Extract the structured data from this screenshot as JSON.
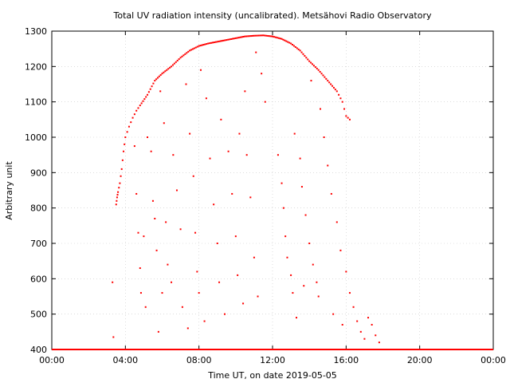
{
  "chart_data": {
    "type": "scatter",
    "title": "Total UV radiation intensity (uncalibrated). Metsähovi Radio Observatory",
    "xlabel": "Time UT, on date 2019-05-05",
    "ylabel": "Arbitrary unit",
    "xlim": [
      "00:00",
      "24:00"
    ],
    "ylim": [
      400,
      1300
    ],
    "x_ticks": [
      "00:00",
      "04:00",
      "08:00",
      "12:00",
      "16:00",
      "20:00",
      "00:00"
    ],
    "y_ticks": [
      400,
      500,
      600,
      700,
      800,
      900,
      1000,
      1100,
      1200,
      1300
    ],
    "grid": true,
    "legend": "none",
    "marker_color": "#ff0000",
    "series": [
      {
        "x_unit": "hours UT",
        "baseline": {
          "x_range": [
            0,
            24
          ],
          "y": 400
        },
        "envelope": [
          [
            3.5,
            810
          ],
          [
            3.55,
            830
          ],
          [
            3.6,
            845
          ],
          [
            3.7,
            870
          ],
          [
            3.8,
            910
          ],
          [
            3.9,
            960
          ],
          [
            4.0,
            1000
          ],
          [
            4.2,
            1030
          ],
          [
            4.4,
            1055
          ],
          [
            4.6,
            1075
          ],
          [
            4.8,
            1090
          ],
          [
            5.2,
            1120
          ],
          [
            5.6,
            1160
          ],
          [
            6.0,
            1180
          ],
          [
            6.5,
            1200
          ],
          [
            7.0,
            1225
          ],
          [
            7.5,
            1245
          ],
          [
            8.0,
            1258
          ],
          [
            8.5,
            1265
          ],
          [
            9.0,
            1270
          ],
          [
            9.5,
            1275
          ],
          [
            10.0,
            1280
          ],
          [
            10.5,
            1285
          ],
          [
            11.0,
            1287
          ],
          [
            11.5,
            1288
          ],
          [
            12.0,
            1285
          ],
          [
            12.5,
            1278
          ],
          [
            13.0,
            1265
          ],
          [
            13.5,
            1245
          ],
          [
            14.0,
            1215
          ],
          [
            14.5,
            1190
          ],
          [
            15.0,
            1160
          ],
          [
            15.5,
            1130
          ],
          [
            15.8,
            1100
          ],
          [
            16.0,
            1060
          ],
          [
            16.2,
            1050
          ]
        ],
        "scatter": [
          [
            3.3,
            590
          ],
          [
            3.35,
            435
          ],
          [
            4.5,
            975
          ],
          [
            4.6,
            840
          ],
          [
            4.7,
            730
          ],
          [
            4.8,
            630
          ],
          [
            4.85,
            560
          ],
          [
            5.0,
            720
          ],
          [
            5.1,
            520
          ],
          [
            5.2,
            1000
          ],
          [
            5.4,
            960
          ],
          [
            5.5,
            820
          ],
          [
            5.6,
            770
          ],
          [
            5.7,
            680
          ],
          [
            5.8,
            450
          ],
          [
            5.9,
            1130
          ],
          [
            6.0,
            560
          ],
          [
            6.1,
            1040
          ],
          [
            6.2,
            760
          ],
          [
            6.3,
            640
          ],
          [
            6.5,
            590
          ],
          [
            6.6,
            950
          ],
          [
            6.8,
            850
          ],
          [
            7.0,
            740
          ],
          [
            7.1,
            520
          ],
          [
            7.3,
            1150
          ],
          [
            7.4,
            460
          ],
          [
            7.5,
            1010
          ],
          [
            7.7,
            890
          ],
          [
            7.8,
            730
          ],
          [
            7.9,
            620
          ],
          [
            8.0,
            560
          ],
          [
            8.1,
            1190
          ],
          [
            8.3,
            480
          ],
          [
            8.4,
            1110
          ],
          [
            8.6,
            940
          ],
          [
            8.8,
            810
          ],
          [
            9.0,
            700
          ],
          [
            9.1,
            590
          ],
          [
            9.2,
            1050
          ],
          [
            9.4,
            500
          ],
          [
            9.6,
            960
          ],
          [
            9.8,
            840
          ],
          [
            10.0,
            720
          ],
          [
            10.1,
            610
          ],
          [
            10.2,
            1010
          ],
          [
            10.4,
            530
          ],
          [
            10.5,
            1130
          ],
          [
            10.6,
            950
          ],
          [
            10.8,
            830
          ],
          [
            11.0,
            660
          ],
          [
            11.1,
            1240
          ],
          [
            11.2,
            550
          ],
          [
            11.4,
            1180
          ],
          [
            11.6,
            1100
          ],
          [
            12.3,
            950
          ],
          [
            12.5,
            870
          ],
          [
            12.6,
            800
          ],
          [
            12.7,
            720
          ],
          [
            12.8,
            660
          ],
          [
            13.0,
            610
          ],
          [
            13.1,
            560
          ],
          [
            13.2,
            1010
          ],
          [
            13.3,
            490
          ],
          [
            13.5,
            940
          ],
          [
            13.6,
            860
          ],
          [
            13.7,
            580
          ],
          [
            13.8,
            780
          ],
          [
            14.0,
            700
          ],
          [
            14.1,
            1160
          ],
          [
            14.2,
            640
          ],
          [
            14.4,
            590
          ],
          [
            14.5,
            550
          ],
          [
            14.6,
            1080
          ],
          [
            14.8,
            1000
          ],
          [
            15.0,
            920
          ],
          [
            15.2,
            840
          ],
          [
            15.3,
            500
          ],
          [
            15.5,
            760
          ],
          [
            15.7,
            680
          ],
          [
            15.8,
            470
          ],
          [
            16.0,
            620
          ],
          [
            16.2,
            560
          ],
          [
            16.4,
            520
          ],
          [
            16.6,
            480
          ],
          [
            16.8,
            450
          ],
          [
            17.0,
            430
          ],
          [
            17.2,
            490
          ],
          [
            17.4,
            470
          ],
          [
            17.6,
            440
          ],
          [
            17.8,
            420
          ]
        ]
      }
    ]
  }
}
